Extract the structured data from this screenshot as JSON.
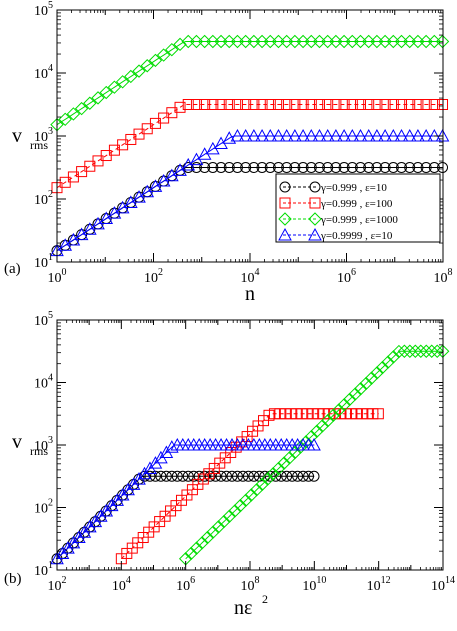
{
  "chart_data": [
    {
      "type": "scatter",
      "panel_label": "(a)",
      "xlabel": "n",
      "ylabel_main": "v",
      "ylabel_sub": "rms",
      "xscale": "log",
      "yscale": "log",
      "xlim_exp": [
        0,
        8
      ],
      "ylim_exp": [
        1,
        5
      ],
      "x_tick_labels": [
        {
          "exp": 0,
          "base": "10",
          "sup": "0"
        },
        {
          "exp": 2,
          "base": "10",
          "sup": "2"
        },
        {
          "exp": 4,
          "base": "10",
          "sup": "4"
        },
        {
          "exp": 6,
          "base": "10",
          "sup": "6"
        },
        {
          "exp": 8,
          "base": "10",
          "sup": "8"
        }
      ],
      "y_tick_labels": [
        {
          "exp": 1,
          "base": "10",
          "sup": "1"
        },
        {
          "exp": 2,
          "base": "10",
          "sup": "2"
        },
        {
          "exp": 3,
          "base": "10",
          "sup": "3"
        },
        {
          "exp": 4,
          "base": "10",
          "sup": "4"
        },
        {
          "exp": 5,
          "base": "10",
          "sup": "5"
        }
      ],
      "legend_position": "center-right",
      "series": [
        {
          "name": "γ=0.999 , ε=10",
          "color": "#000000",
          "marker": "circle",
          "slope": 0.5,
          "y0_exp": 1.18,
          "plateau_exp": 2.5
        },
        {
          "name": "γ=0.999 , ε=100",
          "color": "#ff0000",
          "marker": "square",
          "slope": 0.5,
          "y0_exp": 2.18,
          "plateau_exp": 3.5
        },
        {
          "name": "γ=0.999 , ε=1000",
          "color": "#00dd00",
          "marker": "diamond",
          "slope": 0.5,
          "y0_exp": 3.18,
          "plateau_exp": 4.5
        },
        {
          "name": "γ=0.9999 , ε=10",
          "color": "#0000ff",
          "marker": "triangle",
          "slope": 0.5,
          "y0_exp": 1.18,
          "plateau_exp": 3.0
        }
      ]
    },
    {
      "type": "scatter",
      "panel_label": "(b)",
      "xlabel_main": "nε",
      "xlabel_sup": "2",
      "ylabel_main": "v",
      "ylabel_sub": "rms",
      "xscale": "log",
      "yscale": "log",
      "xlim_exp": [
        2,
        14
      ],
      "ylim_exp": [
        1,
        5
      ],
      "x_tick_labels": [
        {
          "exp": 2,
          "base": "10",
          "sup": "2"
        },
        {
          "exp": 4,
          "base": "10",
          "sup": "4"
        },
        {
          "exp": 6,
          "base": "10",
          "sup": "6"
        },
        {
          "exp": 8,
          "base": "10",
          "sup": "8"
        },
        {
          "exp": 10,
          "base": "10",
          "sup": "10"
        },
        {
          "exp": 12,
          "base": "10",
          "sup": "12"
        },
        {
          "exp": 14,
          "base": "10",
          "sup": "14"
        }
      ],
      "y_tick_labels": [
        {
          "exp": 1,
          "base": "10",
          "sup": "1"
        },
        {
          "exp": 2,
          "base": "10",
          "sup": "2"
        },
        {
          "exp": 3,
          "base": "10",
          "sup": "3"
        },
        {
          "exp": 4,
          "base": "10",
          "sup": "4"
        },
        {
          "exp": 5,
          "base": "10",
          "sup": "5"
        }
      ],
      "series": [
        {
          "color": "#000000",
          "marker": "circle",
          "slope": 0.5,
          "y0_exp": 1.18,
          "plateau_exp": 2.5,
          "x_start_exp": 2,
          "x_end_exp": 10
        },
        {
          "color": "#ff0000",
          "marker": "square",
          "slope": 0.5,
          "y0_exp": 1.18,
          "plateau_exp": 3.5,
          "x_start_exp": 4,
          "x_end_exp": 12
        },
        {
          "color": "#00dd00",
          "marker": "diamond",
          "slope": 0.5,
          "y0_exp": 1.18,
          "plateau_exp": 4.5,
          "x_start_exp": 6,
          "x_end_exp": 14
        },
        {
          "color": "#0000ff",
          "marker": "triangle",
          "slope": 0.5,
          "y0_exp": 1.18,
          "plateau_exp": 3.0,
          "x_start_exp": 2,
          "x_end_exp": 10
        }
      ]
    }
  ]
}
